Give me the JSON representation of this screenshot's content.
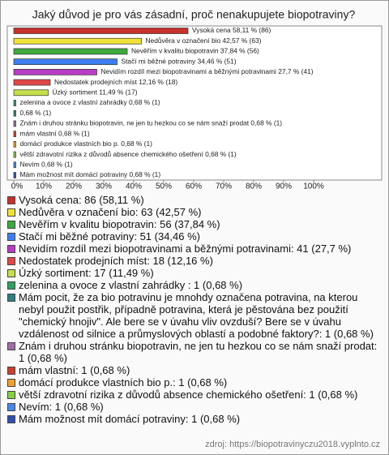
{
  "chart_data": {
    "type": "bar",
    "orientation": "horizontal",
    "title": "Jaký důvod je pro vás zásadní, proč nenakupujete biopotraviny?",
    "categories": [
      "Vysoká cena: 86 (58,11 %)",
      "Nedůvěra v označení bio: 63 (42,57 %)",
      "Nevěřím v kvalitu biopotravin: 56 (37,84 %)",
      "Stačí mi běžné potraviny: 51 (34,46 %)",
      "Nevidím rozdíl mezi biopotravinami a běžnými potravinami: 41 (27,7 %)",
      "Nedostatek prodejních míst: 18 (12,16 %)",
      "Úzký sortiment: 17 (11,49 %)",
      "zelenina a ovoce z vlastní zahrádky : 1 (0,68 %)",
      "Mám pocit, že za bio potravinu je mnohdy označena potravina, na kterou nebyl použit postřik, případně potravina, která je pěstována bez použití \"chemický hnojiv\". Ale bere se v úvahu vliv ovzduší? Bere se v úvahu vzdálenost od silnice a průmyslových oblastí a podobné faktory?: 1 (0,68 %)",
      "Znám i druhou stránku biopotravin, ne jen tu hezkou co se nám snaží prodat: 1 (0,68 %)",
      "mám vlastní: 1 (0,68 %)",
      "domácí produkce vlastních bio p.: 1 (0,68 %)",
      "větší zdravotní rizika z důvodů absence chemického ošetření: 1 (0,68 %)",
      "Nevím: 1 (0,68 %)",
      "Mám možnost mít domácí potraviny: 1 (0,68 %)"
    ],
    "values": [
      58.11,
      42.57,
      37.84,
      34.46,
      27.7,
      12.16,
      11.49,
      0.68,
      0.68,
      0.68,
      0.68,
      0.68,
      0.68,
      0.68,
      0.68
    ],
    "value_labels": [
      "Vysoká cena 58,11 % (86)",
      "Nedůvěra v označení bio 42,57 % (63)",
      "Nevěřím v kvalitu biopotravin 37,84 % (56)",
      "Stačí mi běžné potraviny 34,46 % (51)",
      "Nevidím rozdíl mezi biopotravinami a běžnými potravinami 27,7 % (41)",
      "Nedostatek prodejních míst 12,16 % (18)",
      "Úzký sortiment 11,49 % (17)",
      "zelenina a ovoce z vlastní zahrádky  0,68 % (1)",
      "0,68 % (1)",
      "Znám i druhou stránku biopotravin, ne jen tu hezkou co se nám snaží prodat 0,68 % (1)",
      "mám vlastní 0,68 % (1)",
      "domácí produkce vlastních bio p. 0,68 % (1)",
      "větší zdravotní rizika z důvodů absence chemického ošetření 0,68 % (1)",
      "Nevím 0,68 % (1)",
      "Mám možnost mít domácí potraviny 0,68 % (1)"
    ],
    "colors": [
      "#c8302c",
      "#f0e23a",
      "#3daa3d",
      "#3d7ff0",
      "#b83cc4",
      "#e04848",
      "#c4e04a",
      "#2f9e62",
      "#2e7f80",
      "#a070a0",
      "#c84030",
      "#f0a030",
      "#84d040",
      "#4a86e8",
      "#3050b0"
    ],
    "xlim": [
      0,
      100
    ],
    "xticks": [
      {
        "value": 0,
        "label": "0%"
      },
      {
        "value": 10,
        "label": "10%"
      },
      {
        "value": 20,
        "label": "20%"
      },
      {
        "value": 30,
        "label": "30%"
      },
      {
        "value": 40,
        "label": "40%"
      },
      {
        "value": 50,
        "label": "50%"
      },
      {
        "value": 60,
        "label": "60%"
      },
      {
        "value": 70,
        "label": "70%"
      },
      {
        "value": 80,
        "label": "80%"
      },
      {
        "value": 90,
        "label": "90%"
      },
      {
        "value": 100,
        "label": "100%"
      }
    ],
    "source": "zdroj: https://biopotravinyczu2018.vyplnto.cz"
  }
}
